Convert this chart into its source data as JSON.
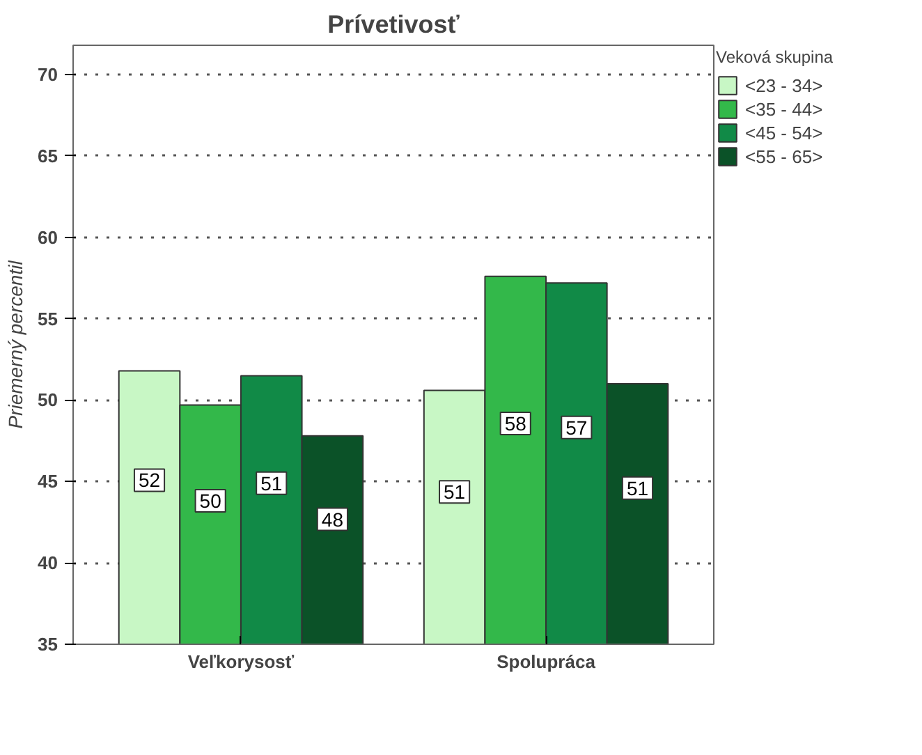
{
  "chart_data": {
    "type": "bar",
    "title": "Prívetivosť",
    "ylabel": "Priemerný percentil",
    "legend_title": "Veková skupina",
    "categories": [
      "Veľkorysosť",
      "Spolupráca"
    ],
    "series": [
      {
        "name": "<23 - 34>",
        "color": "#c8f7c5",
        "values": [
          51.8,
          50.6
        ],
        "value_labels": [
          "52",
          "51"
        ]
      },
      {
        "name": "<35 - 44>",
        "color": "#33b84a",
        "values": [
          49.7,
          57.6
        ],
        "value_labels": [
          "50",
          "58"
        ]
      },
      {
        "name": "<45 - 54>",
        "color": "#118a47",
        "values": [
          51.5,
          57.2
        ],
        "value_labels": [
          "51",
          "57"
        ]
      },
      {
        "name": "<55 - 65>",
        "color": "#0b5228",
        "values": [
          47.8,
          51.0
        ],
        "value_labels": [
          "48",
          "51"
        ]
      }
    ],
    "ylim": [
      35,
      71.8
    ],
    "yticks": [
      35,
      40,
      45,
      50,
      55,
      60,
      65,
      70
    ],
    "grid": "y",
    "legend": "top right"
  }
}
